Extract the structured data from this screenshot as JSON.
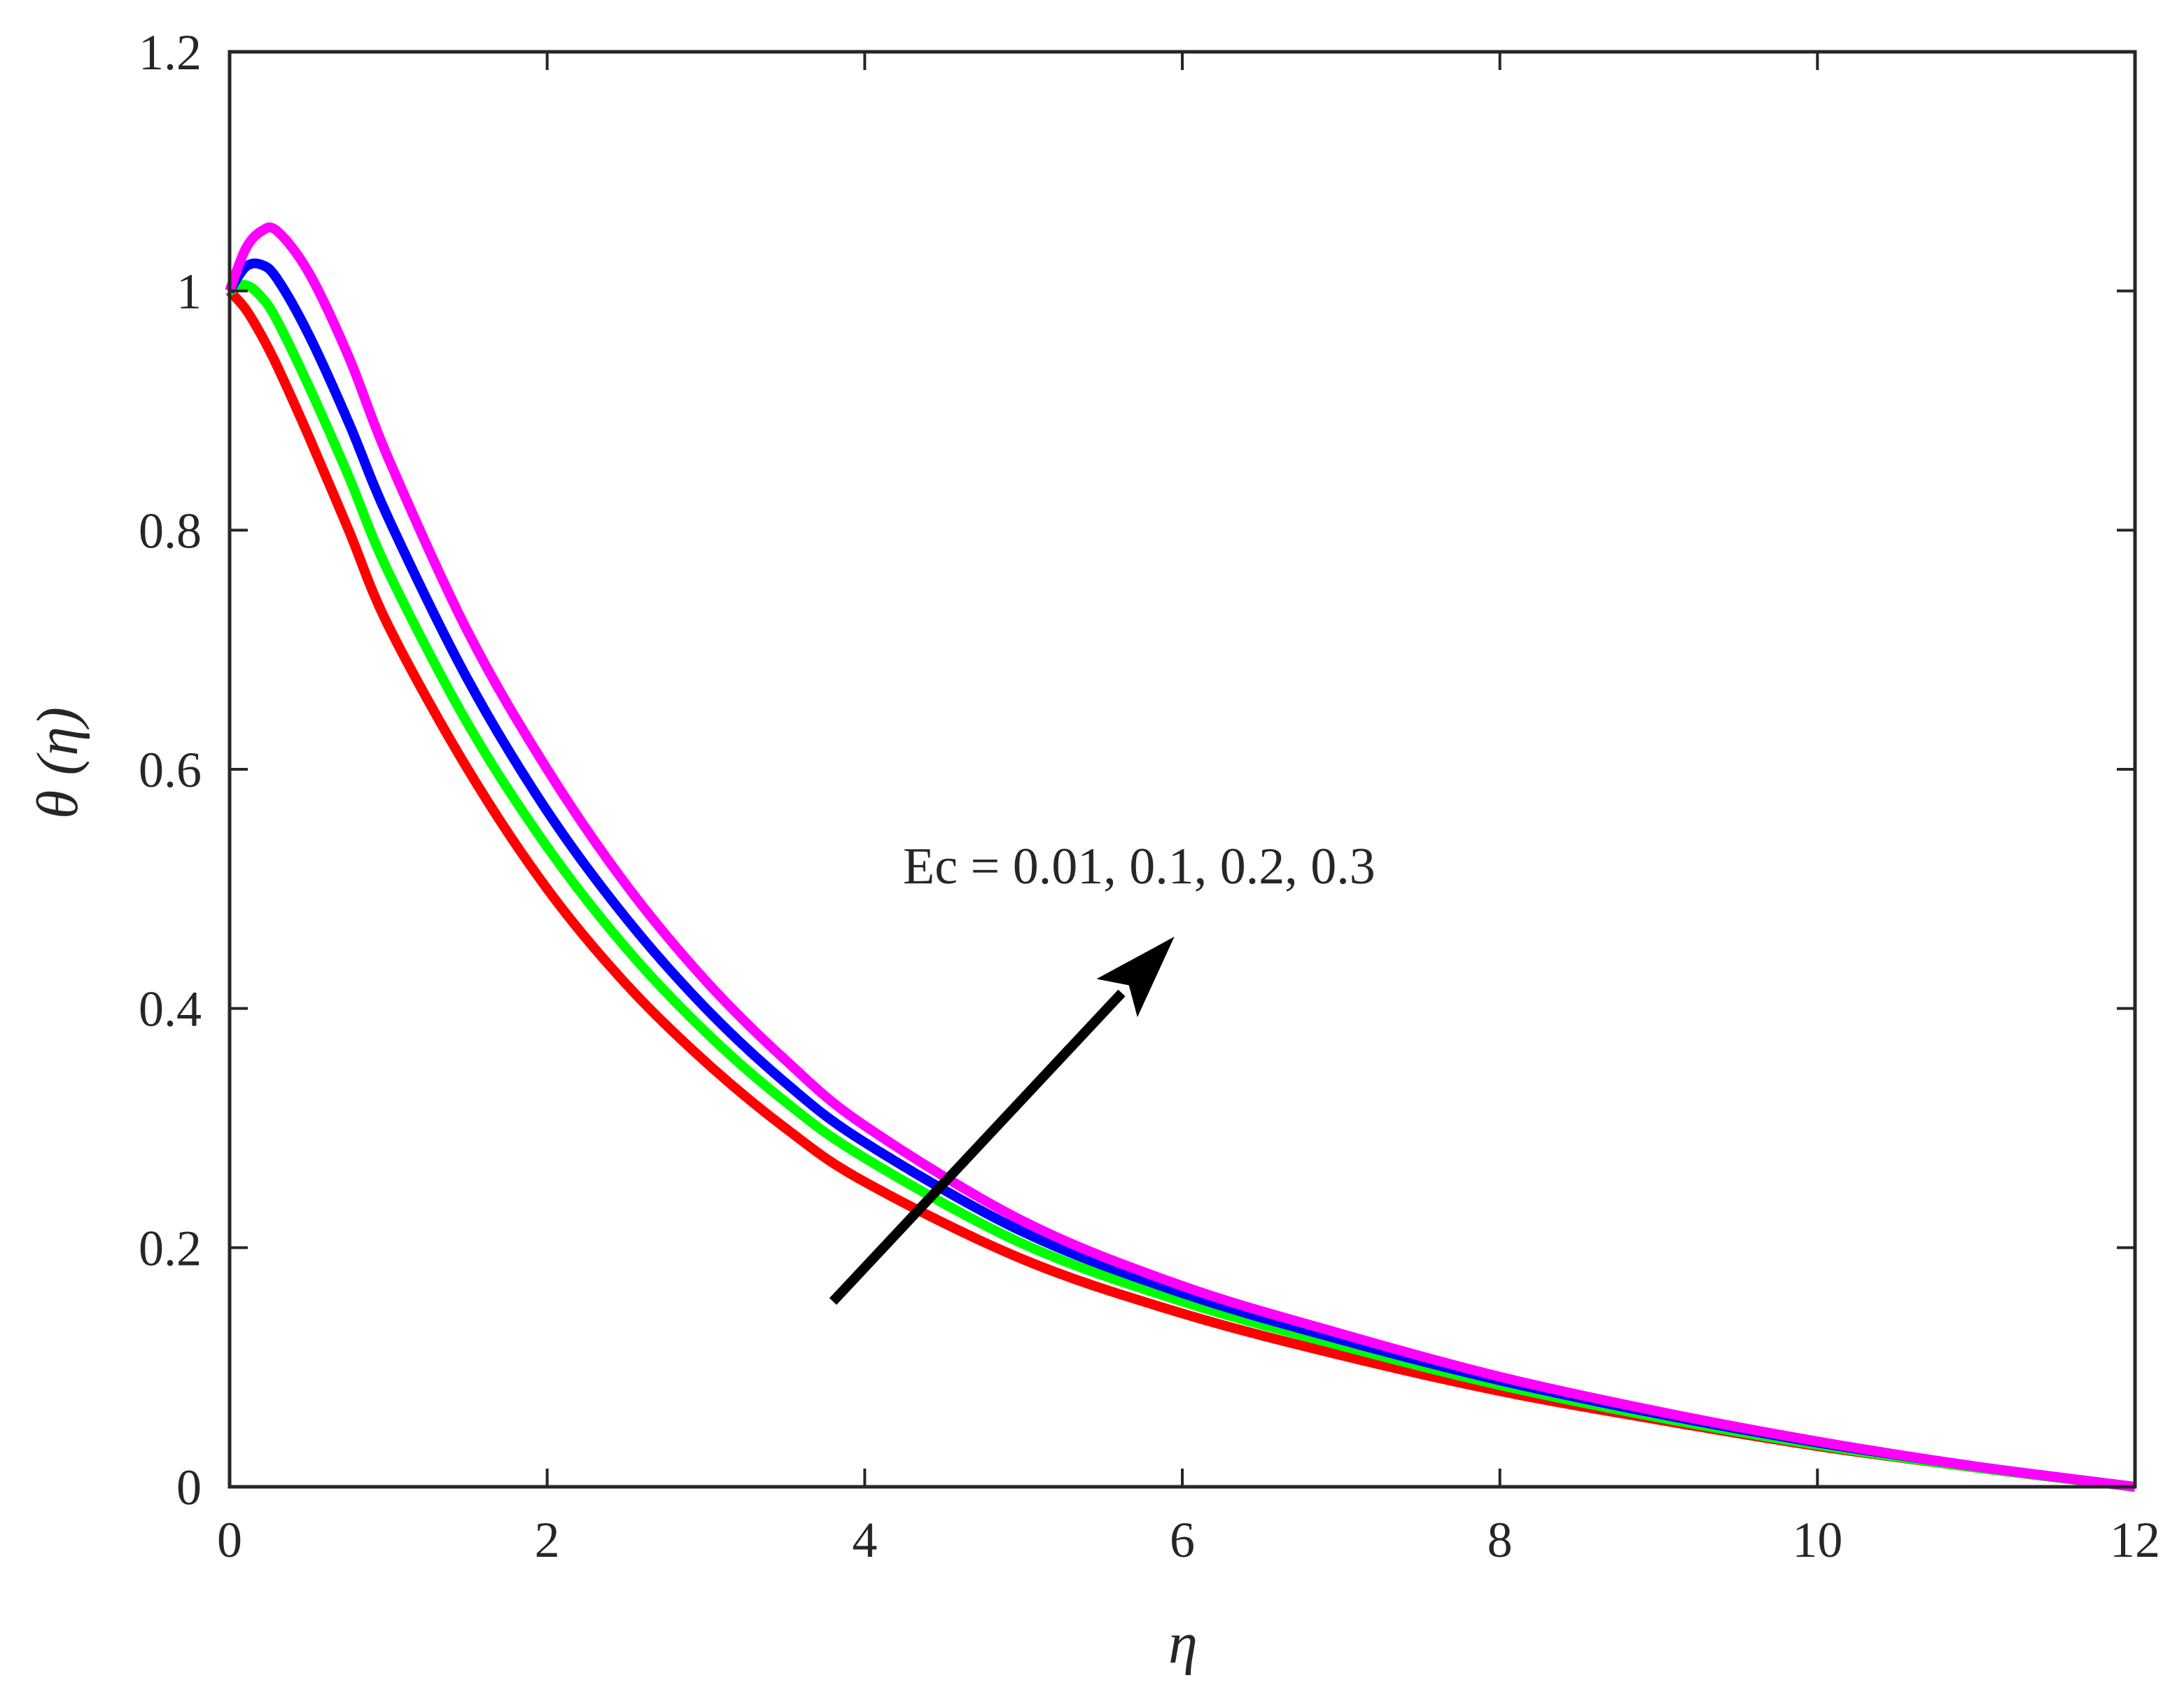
{
  "chart_data": {
    "type": "line",
    "title": "",
    "xlabel": "η",
    "ylabel": "θ (η)",
    "xlim": [
      0,
      12
    ],
    "ylim": [
      0,
      1.2
    ],
    "xticks": [
      0,
      2,
      4,
      6,
      8,
      10,
      12
    ],
    "xtick_labels": [
      "0",
      "2",
      "4",
      "6",
      "8",
      "10",
      "12"
    ],
    "yticks": [
      0,
      0.2,
      0.4,
      0.6,
      0.8,
      1,
      1.2
    ],
    "ytick_labels": [
      "0",
      "0.2",
      "0.4",
      "0.6",
      "0.8",
      "1",
      "1.2"
    ],
    "grid": false,
    "box": true,
    "x": [
      0,
      0.1,
      0.2,
      0.3,
      0.5,
      0.75,
      1,
      1.5,
      2,
      2.5,
      3,
      3.5,
      4,
      5,
      6,
      7,
      8,
      9,
      10,
      11,
      12
    ],
    "series": [
      {
        "name": "Ec = 0.01",
        "color": "#ff0000",
        "values": [
          1.0,
          0.985,
          0.963,
          0.937,
          0.878,
          0.8,
          0.72,
          0.6,
          0.5,
          0.42,
          0.355,
          0.3,
          0.255,
          0.19,
          0.145,
          0.11,
          0.08,
          0.056,
          0.034,
          0.016,
          0.0
        ]
      },
      {
        "name": "Ec = 0.1",
        "color": "#00ff00",
        "values": [
          1.0,
          1.005,
          0.995,
          0.975,
          0.92,
          0.845,
          0.765,
          0.638,
          0.535,
          0.45,
          0.38,
          0.322,
          0.275,
          0.203,
          0.155,
          0.118,
          0.085,
          0.058,
          0.035,
          0.016,
          0.0
        ]
      },
      {
        "name": "Ec = 0.2",
        "color": "#0000ff",
        "values": [
          1.0,
          1.02,
          1.022,
          1.01,
          0.963,
          0.89,
          0.81,
          0.675,
          0.565,
          0.475,
          0.4,
          0.338,
          0.288,
          0.213,
          0.162,
          0.123,
          0.089,
          0.061,
          0.037,
          0.017,
          0.0
        ]
      },
      {
        "name": "Ec = 0.3",
        "color": "#ff00ff",
        "values": [
          1.0,
          1.035,
          1.05,
          1.05,
          1.015,
          0.945,
          0.86,
          0.715,
          0.6,
          0.503,
          0.423,
          0.357,
          0.302,
          0.222,
          0.168,
          0.128,
          0.092,
          0.063,
          0.038,
          0.017,
          0.0
        ]
      }
    ],
    "annotation": {
      "text": "Ec =  0.01, 0.1, 0.2, 0.3",
      "arrow_from": [
        3.8,
        0.155
      ],
      "arrow_to": [
        5.95,
        0.46
      ]
    }
  }
}
